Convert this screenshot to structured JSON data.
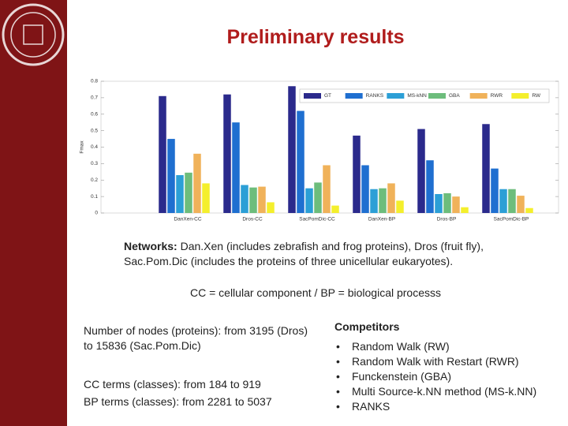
{
  "header": {
    "title": "Preliminary results"
  },
  "chart_data": {
    "type": "bar",
    "y_label": "Fmax",
    "categories": [
      "DanXen-CC",
      "Dros-CC",
      "SacPomDic-CC",
      "DanXen-BP",
      "Dros-BP",
      "SacPomDic-BP"
    ],
    "series": [
      {
        "name": "GT",
        "color": "#2b2a8c",
        "values": [
          0.71,
          0.72,
          0.77,
          0.47,
          0.51,
          0.54
        ]
      },
      {
        "name": "RANKS",
        "color": "#1f6fd0",
        "values": [
          0.45,
          0.55,
          0.62,
          0.29,
          0.32,
          0.27
        ]
      },
      {
        "name": "MS-kNN",
        "color": "#2c9fd6",
        "values": [
          0.23,
          0.17,
          0.15,
          0.145,
          0.115,
          0.145
        ]
      },
      {
        "name": "GBA",
        "color": "#6dbd7c",
        "values": [
          0.245,
          0.155,
          0.185,
          0.15,
          0.12,
          0.145
        ]
      },
      {
        "name": "RWR",
        "color": "#f0b25a",
        "values": [
          0.36,
          0.16,
          0.29,
          0.18,
          0.1,
          0.105
        ]
      },
      {
        "name": "RW",
        "color": "#f4ef2c",
        "values": [
          0.18,
          0.065,
          0.045,
          0.075,
          0.035,
          0.03
        ]
      }
    ],
    "ylim": [
      0,
      0.8
    ],
    "yticks": [
      0,
      0.1,
      0.2,
      0.3,
      0.4,
      0.5,
      0.6,
      0.7,
      0.8
    ],
    "legend": "top-right"
  },
  "networks": {
    "label": "Networks:",
    "text": "Dan.Xen (includes zebrafish and frog proteins), Dros (fruit fly), Sac.Pom.Dic (includes the proteins of three unicellular eukaryotes)."
  },
  "abbreviations": "CC = cellular component / BP = biological processs",
  "stats": [
    "Number of nodes (proteins): from 3195 (Dros) to 15836 (Sac.Pom.Dic)",
    "CC terms (classes): from 184 to 919",
    "BP terms (classes): from 2281 to 5037"
  ],
  "competitors": {
    "title": "Competitors",
    "items": [
      "Random Walk (RW)",
      "Random Walk with Restart (RWR)",
      "Funckenstein (GBA)",
      "Multi Source-k.NN method (MS-k.NN)",
      "RANKS"
    ]
  }
}
